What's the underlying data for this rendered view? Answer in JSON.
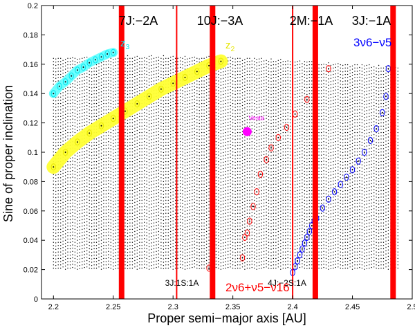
{
  "chart_data": {
    "type": "scatter",
    "title": "",
    "xlabel": "Proper semi−major axis [AU]",
    "ylabel": "Sine of proper inclination",
    "xlim": [
      2.19,
      2.5
    ],
    "ylim": [
      0,
      0.2
    ],
    "x_ticks": [
      "2.2",
      "2.25",
      "2.3",
      "2.35",
      "2.4",
      "2.45",
      "2.5"
    ],
    "y_ticks": [
      "0",
      "0.02",
      "0.04",
      "0.06",
      "0.08",
      "0.1",
      "0.12",
      "0.14",
      "0.16",
      "0.18",
      "0.2"
    ],
    "grid_region": {
      "a_min": 2.2,
      "a_max": 2.488,
      "a_step": 0.002,
      "sin_i_min": 0.021,
      "sin_i_step": 0.0022,
      "upper_edge": [
        [
          2.2,
          0.164
        ],
        [
          2.25,
          0.166
        ],
        [
          2.3,
          0.166
        ],
        [
          2.35,
          0.165
        ],
        [
          2.4,
          0.163
        ],
        [
          2.45,
          0.16
        ],
        [
          2.488,
          0.159
        ]
      ]
    },
    "resonances_thick": [
      {
        "label": "7J:−2A",
        "a": 2.257
      },
      {
        "label": "10J:−3A",
        "a": 2.333
      },
      {
        "label": "2M:−1A",
        "a": 2.419
      },
      {
        "label": "3J:−1A",
        "a": 2.484
      }
    ],
    "resonances_thin": [
      {
        "label": "3J:1S:1A",
        "a": 2.303
      },
      {
        "label": "4J:−2S:1A",
        "a": 2.4
      }
    ],
    "series": [
      {
        "name": "z3",
        "label": "z",
        "subscript": "3",
        "color": "#00e5ee",
        "band_color": "#66ffff",
        "x": [
          2.2,
          2.205,
          2.21,
          2.215,
          2.22,
          2.225,
          2.23,
          2.235,
          2.24,
          2.245,
          2.25
        ],
        "y": [
          0.14,
          0.145,
          0.148,
          0.152,
          0.156,
          0.158,
          0.161,
          0.163,
          0.165,
          0.167,
          0.168
        ]
      },
      {
        "name": "z2",
        "label": "z",
        "subscript": "2",
        "color": "#e6e600",
        "band_color": "#ffff33",
        "x": [
          2.2,
          2.21,
          2.22,
          2.23,
          2.24,
          2.25,
          2.26,
          2.27,
          2.28,
          2.29,
          2.3,
          2.31,
          2.32,
          2.33,
          2.34
        ],
        "y": [
          0.09,
          0.1,
          0.107,
          0.113,
          0.118,
          0.123,
          0.128,
          0.133,
          0.138,
          0.143,
          0.147,
          0.151,
          0.155,
          0.159,
          0.162
        ]
      },
      {
        "name": "2nu6+nu5-nu16",
        "label": "2ν6+ν5−ν16",
        "color": "#ff0000",
        "x": [
          2.33,
          2.358,
          2.36,
          2.362,
          2.364,
          2.367,
          2.37,
          2.373,
          2.378,
          2.382,
          2.388,
          2.395,
          2.402,
          2.412,
          2.43
        ],
        "y": [
          0.021,
          0.028,
          0.042,
          0.045,
          0.053,
          0.063,
          0.073,
          0.085,
          0.095,
          0.103,
          0.11,
          0.117,
          0.126,
          0.136,
          0.157
        ]
      },
      {
        "name": "3nu6-nu5",
        "label": "3ν6−ν5",
        "color": "#0000ff",
        "x": [
          2.4,
          2.402,
          2.404,
          2.406,
          2.408,
          2.41,
          2.412,
          2.414,
          2.416,
          2.418,
          2.42,
          2.425,
          2.43,
          2.435,
          2.44,
          2.445,
          2.45,
          2.455,
          2.46,
          2.465,
          2.47,
          2.475,
          2.478,
          2.48
        ],
        "y": [
          0.018,
          0.022,
          0.026,
          0.03,
          0.034,
          0.038,
          0.042,
          0.046,
          0.05,
          0.053,
          0.055,
          0.062,
          0.068,
          0.073,
          0.078,
          0.083,
          0.088,
          0.094,
          0.1,
          0.108,
          0.116,
          0.127,
          0.138,
          0.157
        ]
      }
    ],
    "highlight_point": {
      "label": "Vesta",
      "x": 2.362,
      "y": 0.114,
      "color": "#ff00ff"
    }
  }
}
